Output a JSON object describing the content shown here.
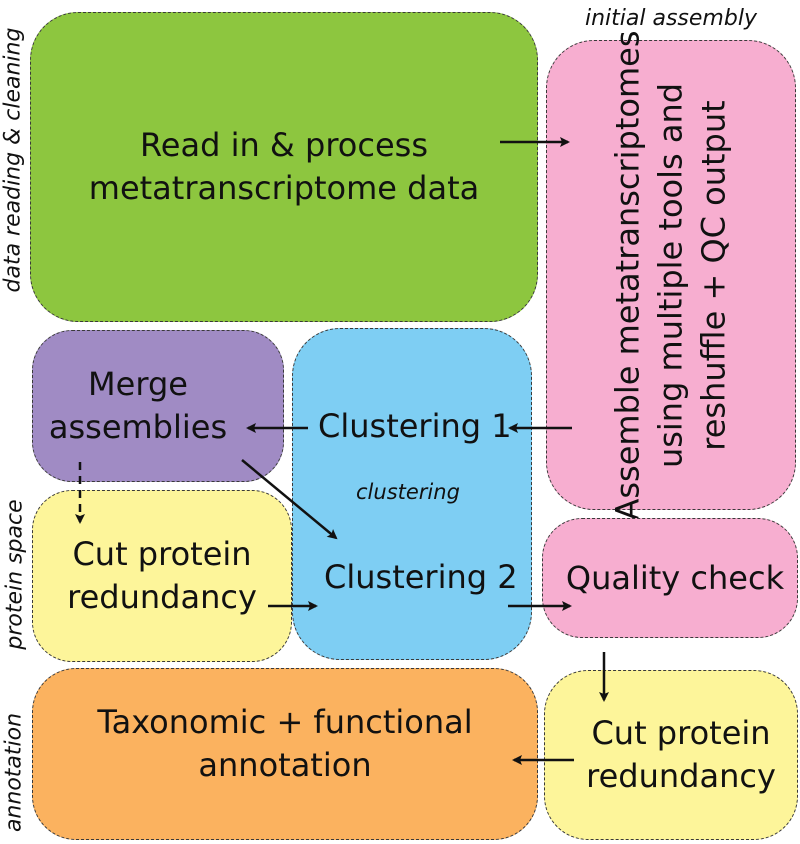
{
  "colors": {
    "green": "#8dc63f",
    "pink": "#f7aed0",
    "purple": "#a08bc4",
    "blue": "#7ecef3",
    "yellow": "#fdf59a",
    "orange": "#fbb25f"
  },
  "section_labels": {
    "data_reading": "data reading & cleaning",
    "initial_assembly": "initial assembly",
    "clustering": "clustering",
    "protein_space": "protein space",
    "annotation": "annotation"
  },
  "boxes": {
    "read_process": {
      "line1": "Read in & process",
      "line2": "metatranscriptome data"
    },
    "assemble": {
      "line1": "Assemble metatranscriptomes",
      "line2": "using multiple tools and",
      "line3": "reshuffle + QC output"
    },
    "merge": {
      "line1": "Merge",
      "line2": "assemblies"
    },
    "clustering1": "Clustering 1",
    "clustering2": "Clustering 2",
    "cut_protein_left": {
      "line1": "Cut protein",
      "line2": "redundancy"
    },
    "quality_check": "Quality check",
    "taxonomic": {
      "line1": "Taxonomic + functional",
      "line2": "annotation"
    },
    "cut_protein_right": {
      "line1": "Cut protein",
      "line2": "redundancy"
    }
  }
}
